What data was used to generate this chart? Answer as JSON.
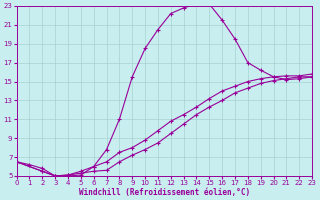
{
  "xlabel": "Windchill (Refroidissement éolien,°C)",
  "background_color": "#c8eef0",
  "line_color": "#990099",
  "xlim": [
    0,
    23
  ],
  "ylim": [
    5,
    23
  ],
  "xticks": [
    0,
    1,
    2,
    3,
    4,
    5,
    6,
    7,
    8,
    9,
    10,
    11,
    12,
    13,
    14,
    15,
    16,
    17,
    18,
    19,
    20,
    21,
    22,
    23
  ],
  "yticks": [
    5,
    7,
    9,
    11,
    13,
    15,
    17,
    19,
    21,
    23
  ],
  "curve1_x": [
    0,
    1,
    2,
    3,
    4,
    5,
    6,
    7,
    8,
    9,
    10,
    11,
    12,
    13,
    14,
    15,
    16,
    17,
    18,
    19,
    20,
    21,
    22,
    23
  ],
  "curve1_y": [
    6.5,
    6.2,
    5.8,
    5.0,
    5.0,
    5.1,
    6.0,
    7.8,
    11.0,
    15.5,
    18.5,
    20.5,
    22.2,
    22.8,
    23.2,
    23.2,
    21.5,
    19.5,
    17.0,
    16.2,
    15.5,
    15.2,
    15.3,
    15.5
  ],
  "curve2_x": [
    0,
    2,
    3,
    4,
    5,
    6,
    7,
    8,
    9,
    10,
    11,
    12,
    13,
    14,
    15,
    16,
    17,
    18,
    19,
    20,
    21,
    22,
    23
  ],
  "curve2_y": [
    6.5,
    5.5,
    5.0,
    5.1,
    5.3,
    5.5,
    5.6,
    6.5,
    7.2,
    7.8,
    8.5,
    9.5,
    10.5,
    11.5,
    12.3,
    13.0,
    13.8,
    14.3,
    14.8,
    15.1,
    15.3,
    15.5,
    15.5
  ],
  "curve3_x": [
    0,
    2,
    3,
    4,
    5,
    6,
    7,
    8,
    9,
    10,
    11,
    12,
    13,
    14,
    15,
    16,
    17,
    18,
    19,
    20,
    21,
    22,
    23
  ],
  "curve3_y": [
    6.5,
    5.5,
    5.0,
    5.1,
    5.5,
    6.0,
    6.5,
    7.5,
    8.0,
    8.8,
    9.8,
    10.8,
    11.5,
    12.3,
    13.2,
    14.0,
    14.5,
    15.0,
    15.3,
    15.5,
    15.6,
    15.6,
    15.8
  ]
}
